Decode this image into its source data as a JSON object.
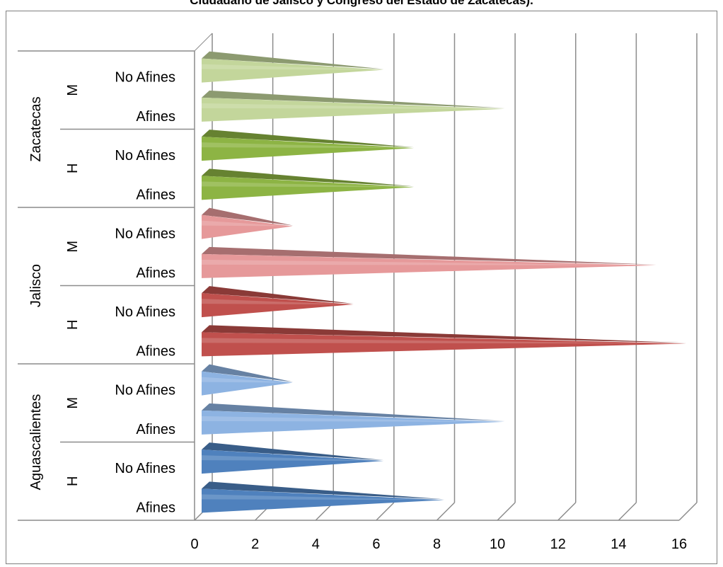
{
  "chart_data": {
    "type": "bar",
    "orientation": "horizontal",
    "style": "3d-cone",
    "title": "Ciudadano de Jalisco y Congreso del Estado de Zacatecas).",
    "xlim": [
      0,
      16
    ],
    "x_ticks": [
      "0",
      "2",
      "4",
      "6",
      "8",
      "10",
      "12",
      "14",
      "16"
    ],
    "grid": true,
    "legend": "none",
    "groups": [
      {
        "state": "Aguascalientes",
        "subgroups": [
          {
            "name": "H",
            "bars": [
              {
                "label": "Afines",
                "value": 8,
                "color": "#4f81bd"
              },
              {
                "label": "No Afines",
                "value": 6,
                "color": "#4f81bd"
              }
            ]
          },
          {
            "name": "M",
            "bars": [
              {
                "label": "Afines",
                "value": 10,
                "color": "#8db3e2"
              },
              {
                "label": "No Afines",
                "value": 3,
                "color": "#8db3e2"
              }
            ]
          }
        ]
      },
      {
        "state": "Jalisco",
        "subgroups": [
          {
            "name": "H",
            "bars": [
              {
                "label": "Afines",
                "value": 16,
                "color": "#c0504d"
              },
              {
                "label": "No Afines",
                "value": 5,
                "color": "#c0504d"
              }
            ]
          },
          {
            "name": "M",
            "bars": [
              {
                "label": "Afines",
                "value": 15,
                "color": "#e6999a"
              },
              {
                "label": "No Afines",
                "value": 3,
                "color": "#e6999a"
              }
            ]
          }
        ]
      },
      {
        "state": "Zacatecas",
        "subgroups": [
          {
            "name": "H",
            "bars": [
              {
                "label": "Afines",
                "value": 7,
                "color": "#8db444"
              },
              {
                "label": "No Afines",
                "value": 7,
                "color": "#8db444"
              }
            ]
          },
          {
            "name": "M",
            "bars": [
              {
                "label": "Afines",
                "value": 10,
                "color": "#c3d69b"
              },
              {
                "label": "No Afines",
                "value": 6,
                "color": "#c3d69b"
              }
            ]
          }
        ]
      }
    ]
  }
}
